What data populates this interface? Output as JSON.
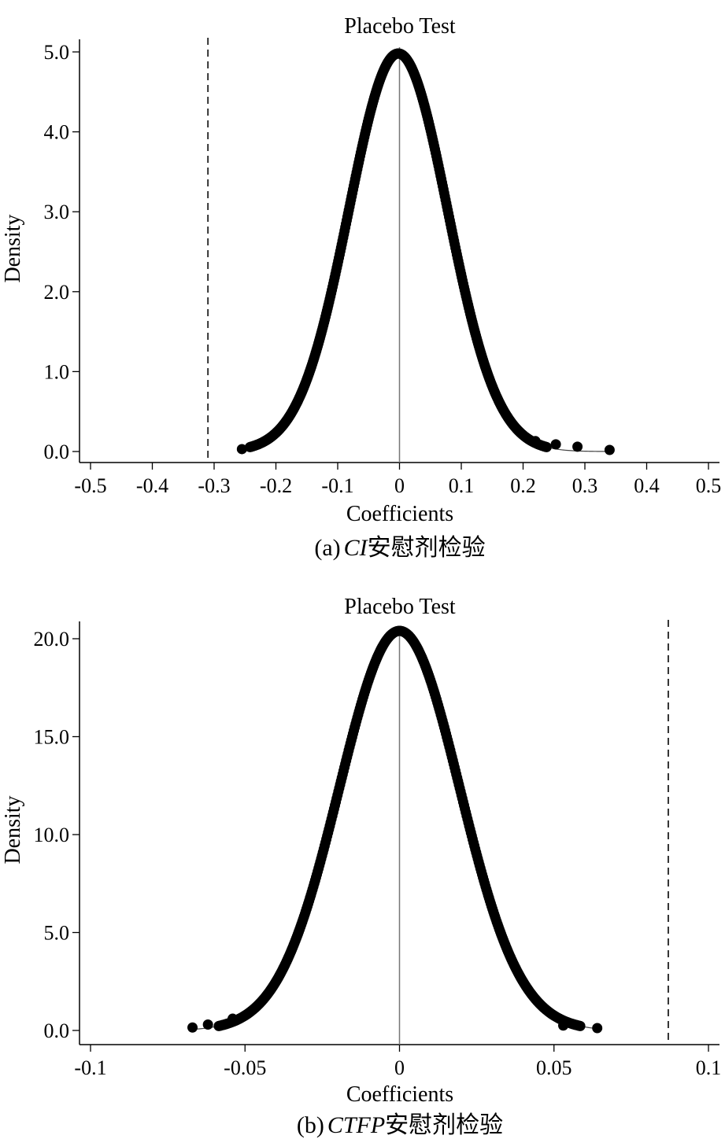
{
  "chart_data": [
    {
      "type": "scatter",
      "title": "Placebo Test",
      "xlabel": "Coefficients",
      "ylabel": "Density",
      "xlim": [
        -0.5,
        0.5
      ],
      "ylim": [
        0,
        5
      ],
      "x_ticks": [
        "-0.5",
        "-0.4",
        "-0.3",
        "-0.2",
        "-0.1",
        "0",
        "0.1",
        "0.2",
        "0.3",
        "0.4",
        "0.5"
      ],
      "y_ticks": [
        "0.0",
        "1.0",
        "2.0",
        "3.0",
        "4.0",
        "5.0"
      ],
      "x_tick_values": [
        -0.5,
        -0.4,
        -0.3,
        -0.2,
        -0.1,
        0,
        0.1,
        0.2,
        0.3,
        0.4,
        0.5
      ],
      "y_tick_values": [
        0,
        1,
        2,
        3,
        4,
        5
      ],
      "reference_line_x": -0.31,
      "zero_line_x": 0,
      "density_curve": {
        "mean": -0.002,
        "sd": 0.08,
        "peak": 4.98
      },
      "points_range": [
        -0.255,
        0.34
      ],
      "outlier_points": [
        {
          "x": 0.22,
          "y": 0.13
        },
        {
          "x": 0.253,
          "y": 0.09
        },
        {
          "x": 0.288,
          "y": 0.06
        },
        {
          "x": 0.34,
          "y": 0.02
        },
        {
          "x": -0.255,
          "y": 0.03
        }
      ],
      "caption_prefix": "(a)",
      "caption_italic": "CI",
      "caption_suffix": "安慰剂检验",
      "grid": false,
      "legend": "none"
    },
    {
      "type": "scatter",
      "title": "Placebo Test",
      "xlabel": "Coefficients",
      "ylabel": "Density",
      "xlim": [
        -0.1,
        0.1
      ],
      "ylim": [
        0,
        20
      ],
      "x_ticks": [
        "-0.1",
        "-0.05",
        "0",
        "0.05",
        "0.1"
      ],
      "y_ticks": [
        "0.0",
        "5.0",
        "10.0",
        "15.0",
        "20.0"
      ],
      "x_tick_values": [
        -0.1,
        -0.05,
        0,
        0.05,
        0.1
      ],
      "y_tick_values": [
        0,
        5,
        10,
        15,
        20
      ],
      "reference_line_x": 0.087,
      "zero_line_x": 0,
      "density_curve": {
        "mean": 0.0,
        "sd": 0.0195,
        "peak": 20.4
      },
      "points_range": [
        -0.067,
        0.064
      ],
      "outlier_points": [
        {
          "x": -0.067,
          "y": 0.15
        },
        {
          "x": -0.062,
          "y": 0.3
        },
        {
          "x": -0.054,
          "y": 0.6
        },
        {
          "x": 0.053,
          "y": 0.25
        },
        {
          "x": 0.064,
          "y": 0.12
        }
      ],
      "caption_prefix": "(b)",
      "caption_italic": "CTFP",
      "caption_suffix": "安慰剂检验",
      "grid": false,
      "legend": "none"
    }
  ]
}
